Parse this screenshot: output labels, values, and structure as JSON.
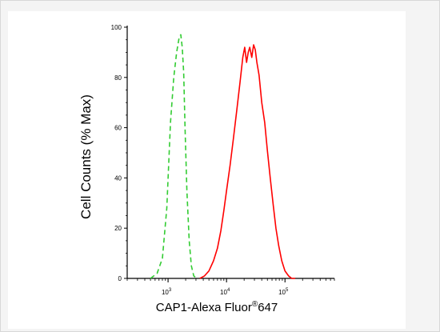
{
  "chart_data": {
    "type": "line",
    "xlabel": "CAP1-Alexa Fluor",
    "xlabel_sup": "®",
    "xlabel_suffix": "647",
    "ylabel": "Cell Counts (% Max)",
    "x_scale": "log",
    "xlim": [
      200,
      700000
    ],
    "ylim": [
      0,
      100
    ],
    "x_ticks": [
      {
        "value": 1000,
        "base": "10",
        "exp": "3"
      },
      {
        "value": 10000,
        "base": "10",
        "exp": "4"
      },
      {
        "value": 100000,
        "base": "10",
        "exp": "5"
      }
    ],
    "y_ticks": [
      0,
      20,
      40,
      60,
      80,
      100
    ],
    "grid": false,
    "series": [
      {
        "style": "dashed",
        "color": "#33cc33",
        "x": [
          500,
          650,
          800,
          950,
          1100,
          1250,
          1400,
          1550,
          1650,
          1750,
          1850,
          1950,
          2100,
          2300,
          2500,
          2750,
          3100
        ],
        "y": [
          0,
          2,
          8,
          28,
          62,
          80,
          90,
          96,
          97,
          92,
          82,
          60,
          35,
          15,
          5,
          1,
          0
        ]
      },
      {
        "style": "solid",
        "color": "#ff0000",
        "x": [
          3500,
          4200,
          5000,
          6000,
          7000,
          8000,
          9000,
          10000,
          11500,
          13000,
          15000,
          17000,
          19000,
          20500,
          22000,
          23500,
          25000,
          27000,
          29000,
          31000,
          33000,
          36000,
          40000,
          45000,
          50000,
          56000,
          63000,
          70000,
          78000,
          88000,
          100000,
          115000,
          130000,
          150000
        ],
        "y": [
          0,
          1,
          3,
          7,
          12,
          19,
          27,
          35,
          45,
          55,
          67,
          78,
          88,
          92,
          86,
          90,
          92,
          88,
          93,
          91,
          86,
          81,
          70,
          62,
          51,
          40,
          29,
          20,
          13,
          7,
          3,
          1,
          0,
          0
        ]
      }
    ]
  }
}
